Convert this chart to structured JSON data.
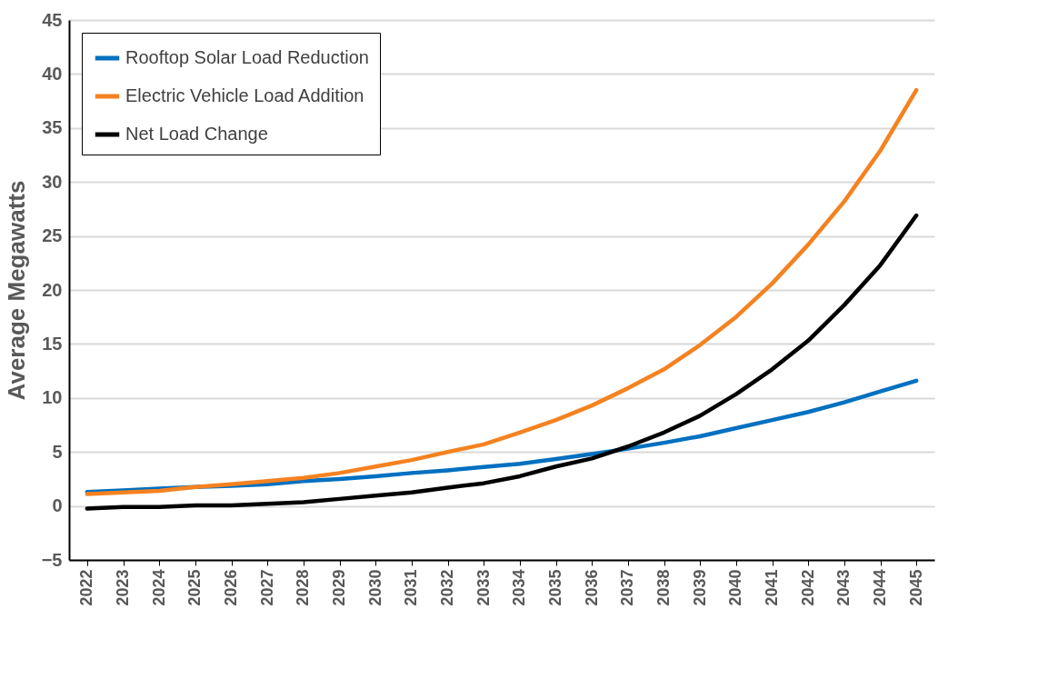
{
  "chart_data": {
    "type": "line",
    "ylabel": "Average Megawatts",
    "categories": [
      "2022",
      "2023",
      "2024",
      "2025",
      "2026",
      "2027",
      "2028",
      "2029",
      "2030",
      "2031",
      "2032",
      "2033",
      "2034",
      "2035",
      "2036",
      "2037",
      "2038",
      "2039",
      "2040",
      "2041",
      "2042",
      "2043",
      "2044",
      "2045"
    ],
    "series": [
      {
        "name": "Rooftop Solar Load Reduction",
        "color": "#0070c0",
        "values": [
          1.3,
          1.45,
          1.6,
          1.75,
          1.85,
          2.0,
          2.3,
          2.5,
          2.75,
          3.05,
          3.3,
          3.6,
          3.9,
          4.35,
          4.8,
          5.3,
          5.85,
          6.45,
          7.2,
          7.95,
          8.7,
          9.6,
          10.6,
          11.6
        ]
      },
      {
        "name": "Electric Vehicle Load Addition",
        "color": "#f58220",
        "values": [
          1.1,
          1.25,
          1.4,
          1.75,
          2.0,
          2.3,
          2.6,
          3.05,
          3.65,
          4.25,
          5.0,
          5.7,
          6.8,
          7.95,
          9.3,
          10.9,
          12.65,
          14.9,
          17.5,
          20.6,
          24.2,
          28.2,
          32.9,
          38.5
        ]
      },
      {
        "name": "Net Load Change",
        "color": "#000000",
        "values": [
          -0.25,
          -0.1,
          -0.1,
          0.05,
          0.05,
          0.2,
          0.35,
          0.65,
          0.95,
          1.25,
          1.7,
          2.1,
          2.75,
          3.65,
          4.4,
          5.5,
          6.8,
          8.35,
          10.35,
          12.65,
          15.3,
          18.6,
          22.3,
          26.9
        ]
      }
    ],
    "ylim": [
      -5,
      45
    ],
    "yticks": [
      -5,
      0,
      5,
      10,
      15,
      20,
      25,
      30,
      35,
      40,
      45
    ],
    "grid": "y",
    "legend": "top left",
    "marker": "none",
    "line_style": "solid"
  }
}
